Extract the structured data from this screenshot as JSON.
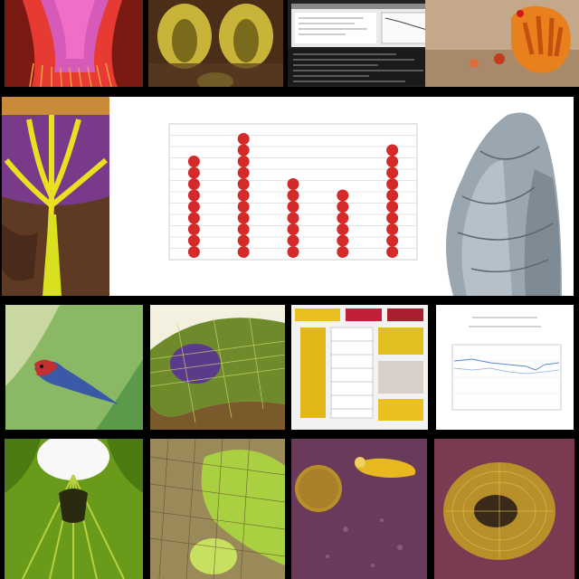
{
  "collage": {
    "tiles": [
      {
        "name": "red-organ-tile"
      },
      {
        "name": "yellow-tissue-tile"
      },
      {
        "name": "software-screen-tile"
      },
      {
        "name": "orange-figure-tile"
      },
      {
        "name": "plant-root-tile"
      },
      {
        "name": "dot-chart-tile"
      },
      {
        "name": "vessel-structure-tile"
      },
      {
        "name": "bird-feather-tile"
      },
      {
        "name": "green-mesh-tile"
      },
      {
        "name": "colored-table-tile"
      },
      {
        "name": "line-graph-tile"
      },
      {
        "name": "green-leaf-tile"
      },
      {
        "name": "green-net-tile"
      },
      {
        "name": "purple-cells-tile"
      },
      {
        "name": "mesh-sphere-tile"
      }
    ]
  },
  "chart_data": {
    "type": "scatter",
    "categories": [
      "",
      "",
      "",
      "",
      ""
    ],
    "values": [
      9,
      11,
      7,
      6,
      10
    ],
    "title": "",
    "xlabel": "",
    "ylabel": "",
    "marker_color": "#d42a2a"
  }
}
